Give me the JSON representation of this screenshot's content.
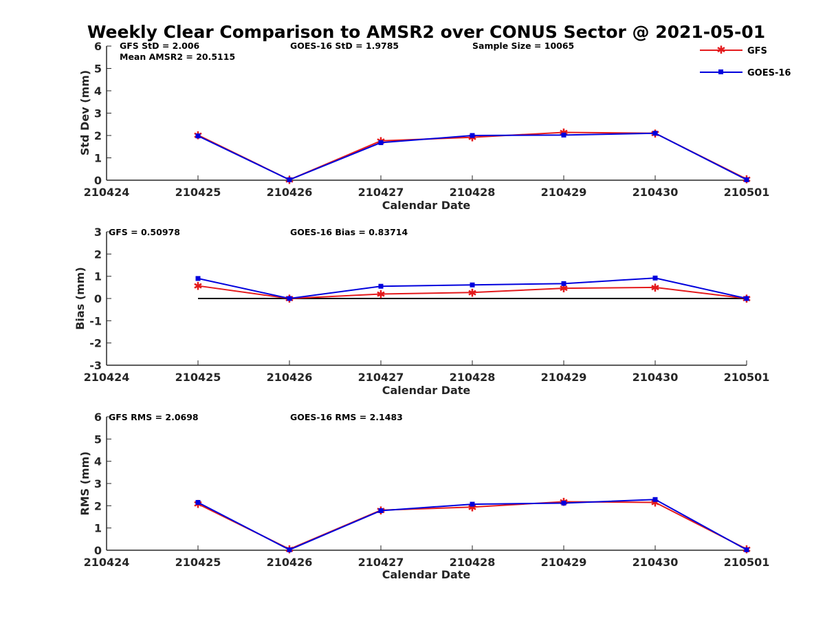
{
  "title": "Weekly Clear Comparison to AMSR2 over CONUS Sector @ 2021-05-01",
  "legend": [
    {
      "name": "GFS",
      "color": "#e41a1c",
      "marker": "asterisk"
    },
    {
      "name": "GOES-16",
      "color": "#0000dd",
      "marker": "square"
    }
  ],
  "chart_data": [
    {
      "type": "line",
      "ylabel": "Std Dev (mm)",
      "xlabel": "Calendar Date",
      "ylim": [
        0,
        6
      ],
      "yticks": [
        "0",
        "1",
        "2",
        "3",
        "4",
        "5",
        "6"
      ],
      "x": [
        "210424",
        "210425",
        "210426",
        "210427",
        "210428",
        "210429",
        "210430",
        "210501"
      ],
      "annotations": [
        "GFS StD = 2.006",
        "Mean AMSR2 = 20.5115",
        "GOES-16 StD = 1.9785",
        "Sample Size = 10065"
      ],
      "zero_line": false,
      "series": [
        {
          "name": "GFS",
          "x": [
            "210425",
            "210426",
            "210427",
            "210428",
            "210429",
            "210430",
            "210501"
          ],
          "values": [
            2.02,
            0.02,
            1.76,
            1.92,
            2.14,
            2.1,
            0.05
          ]
        },
        {
          "name": "GOES-16",
          "x": [
            "210425",
            "210426",
            "210427",
            "210428",
            "210429",
            "210430",
            "210501"
          ],
          "values": [
            1.98,
            0.02,
            1.68,
            2.0,
            2.02,
            2.1,
            0.02
          ]
        }
      ]
    },
    {
      "type": "line",
      "ylabel": "Bias (mm)",
      "xlabel": "Calendar Date",
      "ylim": [
        -3,
        3
      ],
      "yticks": [
        "-3",
        "-2",
        "-1",
        "0",
        "1",
        "2",
        "3"
      ],
      "x": [
        "210424",
        "210425",
        "210426",
        "210427",
        "210428",
        "210429",
        "210430",
        "210501"
      ],
      "annotations": [
        "GFS = 0.50978",
        "GOES-16 Bias  = 0.83714"
      ],
      "zero_line": true,
      "series": [
        {
          "name": "GFS",
          "x": [
            "210425",
            "210426",
            "210427",
            "210428",
            "210429",
            "210430",
            "210501"
          ],
          "values": [
            0.57,
            0.0,
            0.2,
            0.27,
            0.46,
            0.5,
            0.0
          ]
        },
        {
          "name": "GOES-16",
          "x": [
            "210425",
            "210426",
            "210427",
            "210428",
            "210429",
            "210430",
            "210501"
          ],
          "values": [
            0.9,
            0.0,
            0.55,
            0.61,
            0.67,
            0.92,
            0.0
          ]
        }
      ]
    },
    {
      "type": "line",
      "ylabel": "RMS (mm)",
      "xlabel": "Calendar Date",
      "ylim": [
        0,
        6
      ],
      "yticks": [
        "0",
        "1",
        "2",
        "3",
        "4",
        "5",
        "6"
      ],
      "x": [
        "210424",
        "210425",
        "210426",
        "210427",
        "210428",
        "210429",
        "210430",
        "210501"
      ],
      "annotations": [
        "GFS RMS = 2.0698",
        "GOES-16 RMS = 2.1483"
      ],
      "zero_line": false,
      "series": [
        {
          "name": "GFS",
          "x": [
            "210425",
            "210426",
            "210427",
            "210428",
            "210429",
            "210430",
            "210501"
          ],
          "values": [
            2.08,
            0.05,
            1.8,
            1.94,
            2.18,
            2.15,
            0.05
          ]
        },
        {
          "name": "GOES-16",
          "x": [
            "210425",
            "210426",
            "210427",
            "210428",
            "210429",
            "210430",
            "210501"
          ],
          "values": [
            2.15,
            0.02,
            1.78,
            2.07,
            2.12,
            2.28,
            0.02
          ]
        }
      ]
    }
  ]
}
